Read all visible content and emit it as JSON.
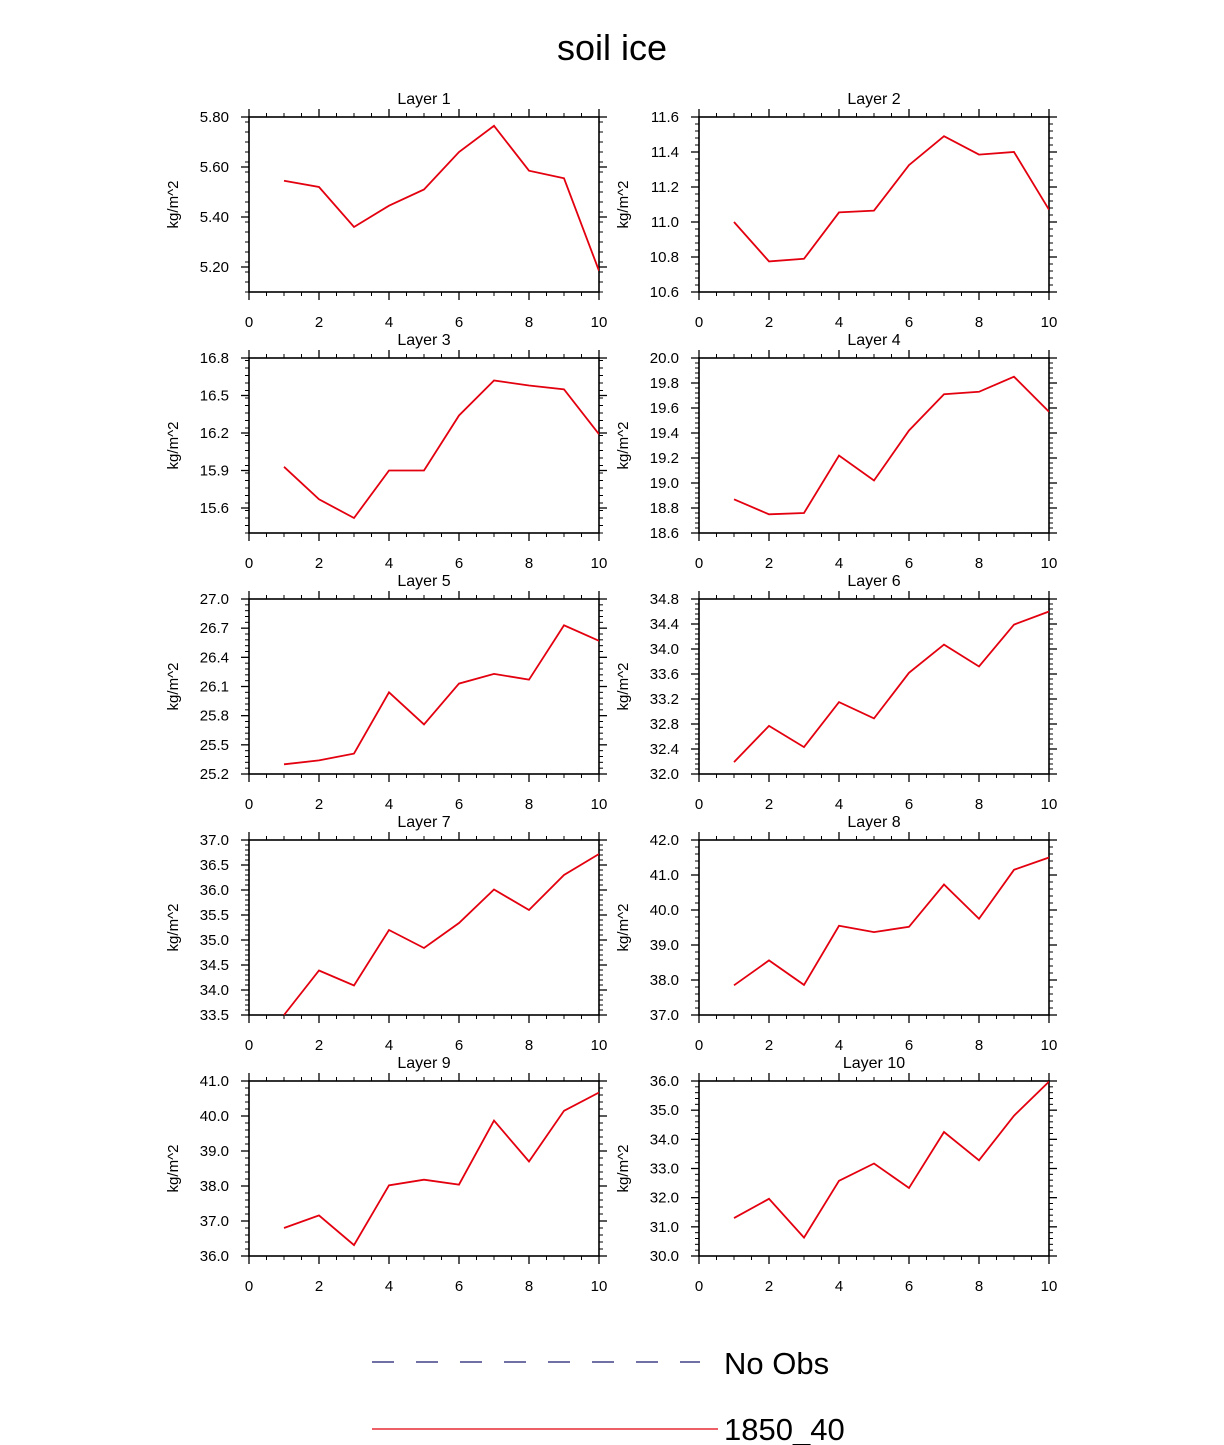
{
  "figure": {
    "title": "soil ice"
  },
  "colors": {
    "model_line": "#e3000f",
    "obs_line": "#1a1a6e",
    "axis": "#000000"
  },
  "legend": {
    "entries": [
      {
        "label": "No Obs",
        "style": "dashed",
        "color": "#1a1a6e"
      },
      {
        "label": "1850_40",
        "style": "solid",
        "color": "#e3000f"
      }
    ]
  },
  "chart_data": [
    {
      "type": "line",
      "title": "Layer 1",
      "ylabel": "kg/m^2",
      "xlim": [
        0,
        10
      ],
      "ylim": [
        5.1,
        5.8
      ],
      "xticks": [
        "0",
        "2",
        "4",
        "6",
        "8",
        "10"
      ],
      "yticks": [
        "5.20",
        "5.40",
        "5.60",
        "5.80"
      ],
      "series": [
        {
          "name": "1850_40",
          "x": [
            1,
            2,
            3,
            4,
            5,
            6,
            7,
            8,
            9,
            10
          ],
          "values": [
            5.545,
            5.52,
            5.36,
            5.445,
            5.51,
            5.66,
            5.765,
            5.585,
            5.555,
            5.185
          ]
        }
      ]
    },
    {
      "type": "line",
      "title": "Layer 2",
      "ylabel": "kg/m^2",
      "xlim": [
        0,
        10
      ],
      "ylim": [
        10.6,
        11.6
      ],
      "xticks": [
        "0",
        "2",
        "4",
        "6",
        "8",
        "10"
      ],
      "yticks": [
        "10.6",
        "10.8",
        "11.0",
        "11.2",
        "11.4",
        "11.6"
      ],
      "series": [
        {
          "name": "1850_40",
          "x": [
            1,
            2,
            3,
            4,
            5,
            6,
            7,
            8,
            9,
            10
          ],
          "values": [
            11.0,
            10.775,
            10.79,
            11.055,
            11.065,
            11.325,
            11.49,
            11.385,
            11.4,
            11.07
          ]
        }
      ]
    },
    {
      "type": "line",
      "title": "Layer 3",
      "ylabel": "kg/m^2",
      "xlim": [
        0,
        10
      ],
      "ylim": [
        15.4,
        16.8
      ],
      "xticks": [
        "0",
        "2",
        "4",
        "6",
        "8",
        "10"
      ],
      "yticks": [
        "15.6",
        "15.9",
        "16.2",
        "16.5",
        "16.8"
      ],
      "series": [
        {
          "name": "1850_40",
          "x": [
            1,
            2,
            3,
            4,
            5,
            6,
            7,
            8,
            9,
            10
          ],
          "values": [
            15.93,
            15.67,
            15.52,
            15.9,
            15.9,
            16.34,
            16.62,
            16.58,
            16.55,
            16.19
          ]
        }
      ]
    },
    {
      "type": "line",
      "title": "Layer 4",
      "ylabel": "kg/m^2",
      "xlim": [
        0,
        10
      ],
      "ylim": [
        18.6,
        20.0
      ],
      "xticks": [
        "0",
        "2",
        "4",
        "6",
        "8",
        "10"
      ],
      "yticks": [
        "18.6",
        "18.8",
        "19.0",
        "19.2",
        "19.4",
        "19.6",
        "19.8",
        "20.0"
      ],
      "series": [
        {
          "name": "1850_40",
          "x": [
            1,
            2,
            3,
            4,
            5,
            6,
            7,
            8,
            9,
            10
          ],
          "values": [
            18.87,
            18.75,
            18.76,
            19.22,
            19.02,
            19.42,
            19.71,
            19.73,
            19.85,
            19.57
          ]
        }
      ]
    },
    {
      "type": "line",
      "title": "Layer 5",
      "ylabel": "kg/m^2",
      "xlim": [
        0,
        10
      ],
      "ylim": [
        25.2,
        27.0
      ],
      "xticks": [
        "0",
        "2",
        "4",
        "6",
        "8",
        "10"
      ],
      "yticks": [
        "25.2",
        "25.5",
        "25.8",
        "26.1",
        "26.4",
        "26.7",
        "27.0"
      ],
      "series": [
        {
          "name": "1850_40",
          "x": [
            1,
            2,
            3,
            4,
            5,
            6,
            7,
            8,
            9,
            10
          ],
          "values": [
            25.3,
            25.34,
            25.41,
            26.04,
            25.71,
            26.13,
            26.23,
            26.17,
            26.73,
            26.57
          ]
        }
      ]
    },
    {
      "type": "line",
      "title": "Layer 6",
      "ylabel": "kg/m^2",
      "xlim": [
        0,
        10
      ],
      "ylim": [
        32.0,
        34.8
      ],
      "xticks": [
        "0",
        "2",
        "4",
        "6",
        "8",
        "10"
      ],
      "yticks": [
        "32.0",
        "32.4",
        "32.8",
        "33.2",
        "33.6",
        "34.0",
        "34.4",
        "34.8"
      ],
      "series": [
        {
          "name": "1850_40",
          "x": [
            1,
            2,
            3,
            4,
            5,
            6,
            7,
            8,
            9,
            10
          ],
          "values": [
            32.19,
            32.77,
            32.43,
            33.15,
            32.89,
            33.62,
            34.07,
            33.72,
            34.39,
            34.6
          ]
        }
      ]
    },
    {
      "type": "line",
      "title": "Layer 7",
      "ylabel": "kg/m^2",
      "xlim": [
        0,
        10
      ],
      "ylim": [
        33.5,
        37.0
      ],
      "xticks": [
        "0",
        "2",
        "4",
        "6",
        "8",
        "10"
      ],
      "yticks": [
        "33.5",
        "34.0",
        "34.5",
        "35.0",
        "35.5",
        "36.0",
        "36.5",
        "37.0"
      ],
      "series": [
        {
          "name": "1850_40",
          "x": [
            1,
            2,
            3,
            4,
            5,
            6,
            7,
            8,
            9,
            10
          ],
          "values": [
            33.5,
            34.39,
            34.09,
            35.2,
            34.84,
            35.34,
            36.01,
            35.6,
            36.3,
            36.72
          ]
        }
      ]
    },
    {
      "type": "line",
      "title": "Layer 8",
      "ylabel": "kg/m^2",
      "xlim": [
        0,
        10
      ],
      "ylim": [
        37.0,
        42.0
      ],
      "xticks": [
        "0",
        "2",
        "4",
        "6",
        "8",
        "10"
      ],
      "yticks": [
        "37.0",
        "38.0",
        "39.0",
        "40.0",
        "41.0",
        "42.0"
      ],
      "series": [
        {
          "name": "1850_40",
          "x": [
            1,
            2,
            3,
            4,
            5,
            6,
            7,
            8,
            9,
            10
          ],
          "values": [
            37.85,
            38.56,
            37.86,
            39.55,
            39.37,
            39.52,
            40.73,
            39.75,
            41.15,
            41.5
          ]
        }
      ]
    },
    {
      "type": "line",
      "title": "Layer 9",
      "ylabel": "kg/m^2",
      "xlim": [
        0,
        10
      ],
      "ylim": [
        36.0,
        41.0
      ],
      "xticks": [
        "0",
        "2",
        "4",
        "6",
        "8",
        "10"
      ],
      "yticks": [
        "36.0",
        "37.0",
        "38.0",
        "39.0",
        "40.0",
        "41.0"
      ],
      "series": [
        {
          "name": "1850_40",
          "x": [
            1,
            2,
            3,
            4,
            5,
            6,
            7,
            8,
            9,
            10
          ],
          "values": [
            36.8,
            37.16,
            36.31,
            38.02,
            38.18,
            38.04,
            39.87,
            38.7,
            40.15,
            40.67
          ]
        }
      ]
    },
    {
      "type": "line",
      "title": "Layer 10",
      "ylabel": "kg/m^2",
      "xlim": [
        0,
        10
      ],
      "ylim": [
        30.0,
        36.0
      ],
      "xticks": [
        "0",
        "2",
        "4",
        "6",
        "8",
        "10"
      ],
      "yticks": [
        "30.0",
        "31.0",
        "32.0",
        "33.0",
        "34.0",
        "35.0",
        "36.0"
      ],
      "series": [
        {
          "name": "1850_40",
          "x": [
            1,
            2,
            3,
            4,
            5,
            6,
            7,
            8,
            9,
            10
          ],
          "values": [
            31.3,
            31.96,
            30.63,
            32.58,
            33.17,
            32.33,
            34.25,
            33.28,
            34.81,
            35.98
          ]
        }
      ]
    }
  ]
}
